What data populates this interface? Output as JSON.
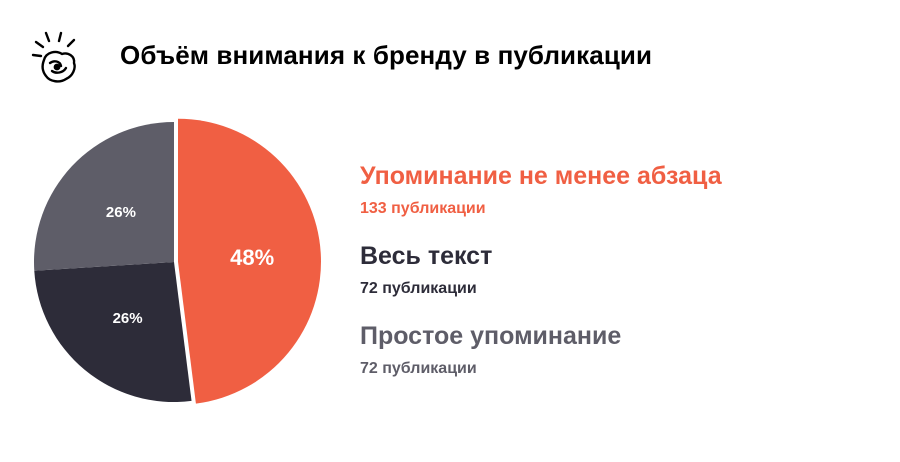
{
  "title": "Объём внимания к бренду в публикации",
  "chart_data": {
    "type": "pie",
    "slices": [
      {
        "label": "48%",
        "value": 48,
        "color": "#f05f43",
        "name": "Упоминание не менее абзаца",
        "count_label": "133 публикации"
      },
      {
        "label": "26%",
        "value": 26,
        "color": "#2d2c39",
        "name": "Весь текст",
        "count_label": "72 публикации"
      },
      {
        "label": "26%",
        "value": 26,
        "color": "#5e5d68",
        "name": "Простое упоминание",
        "count_label": "72 публикации"
      }
    ],
    "legend_position": "right"
  },
  "legend_colors": [
    "#f05f43",
    "#2d2c39",
    "#5e5d68"
  ]
}
